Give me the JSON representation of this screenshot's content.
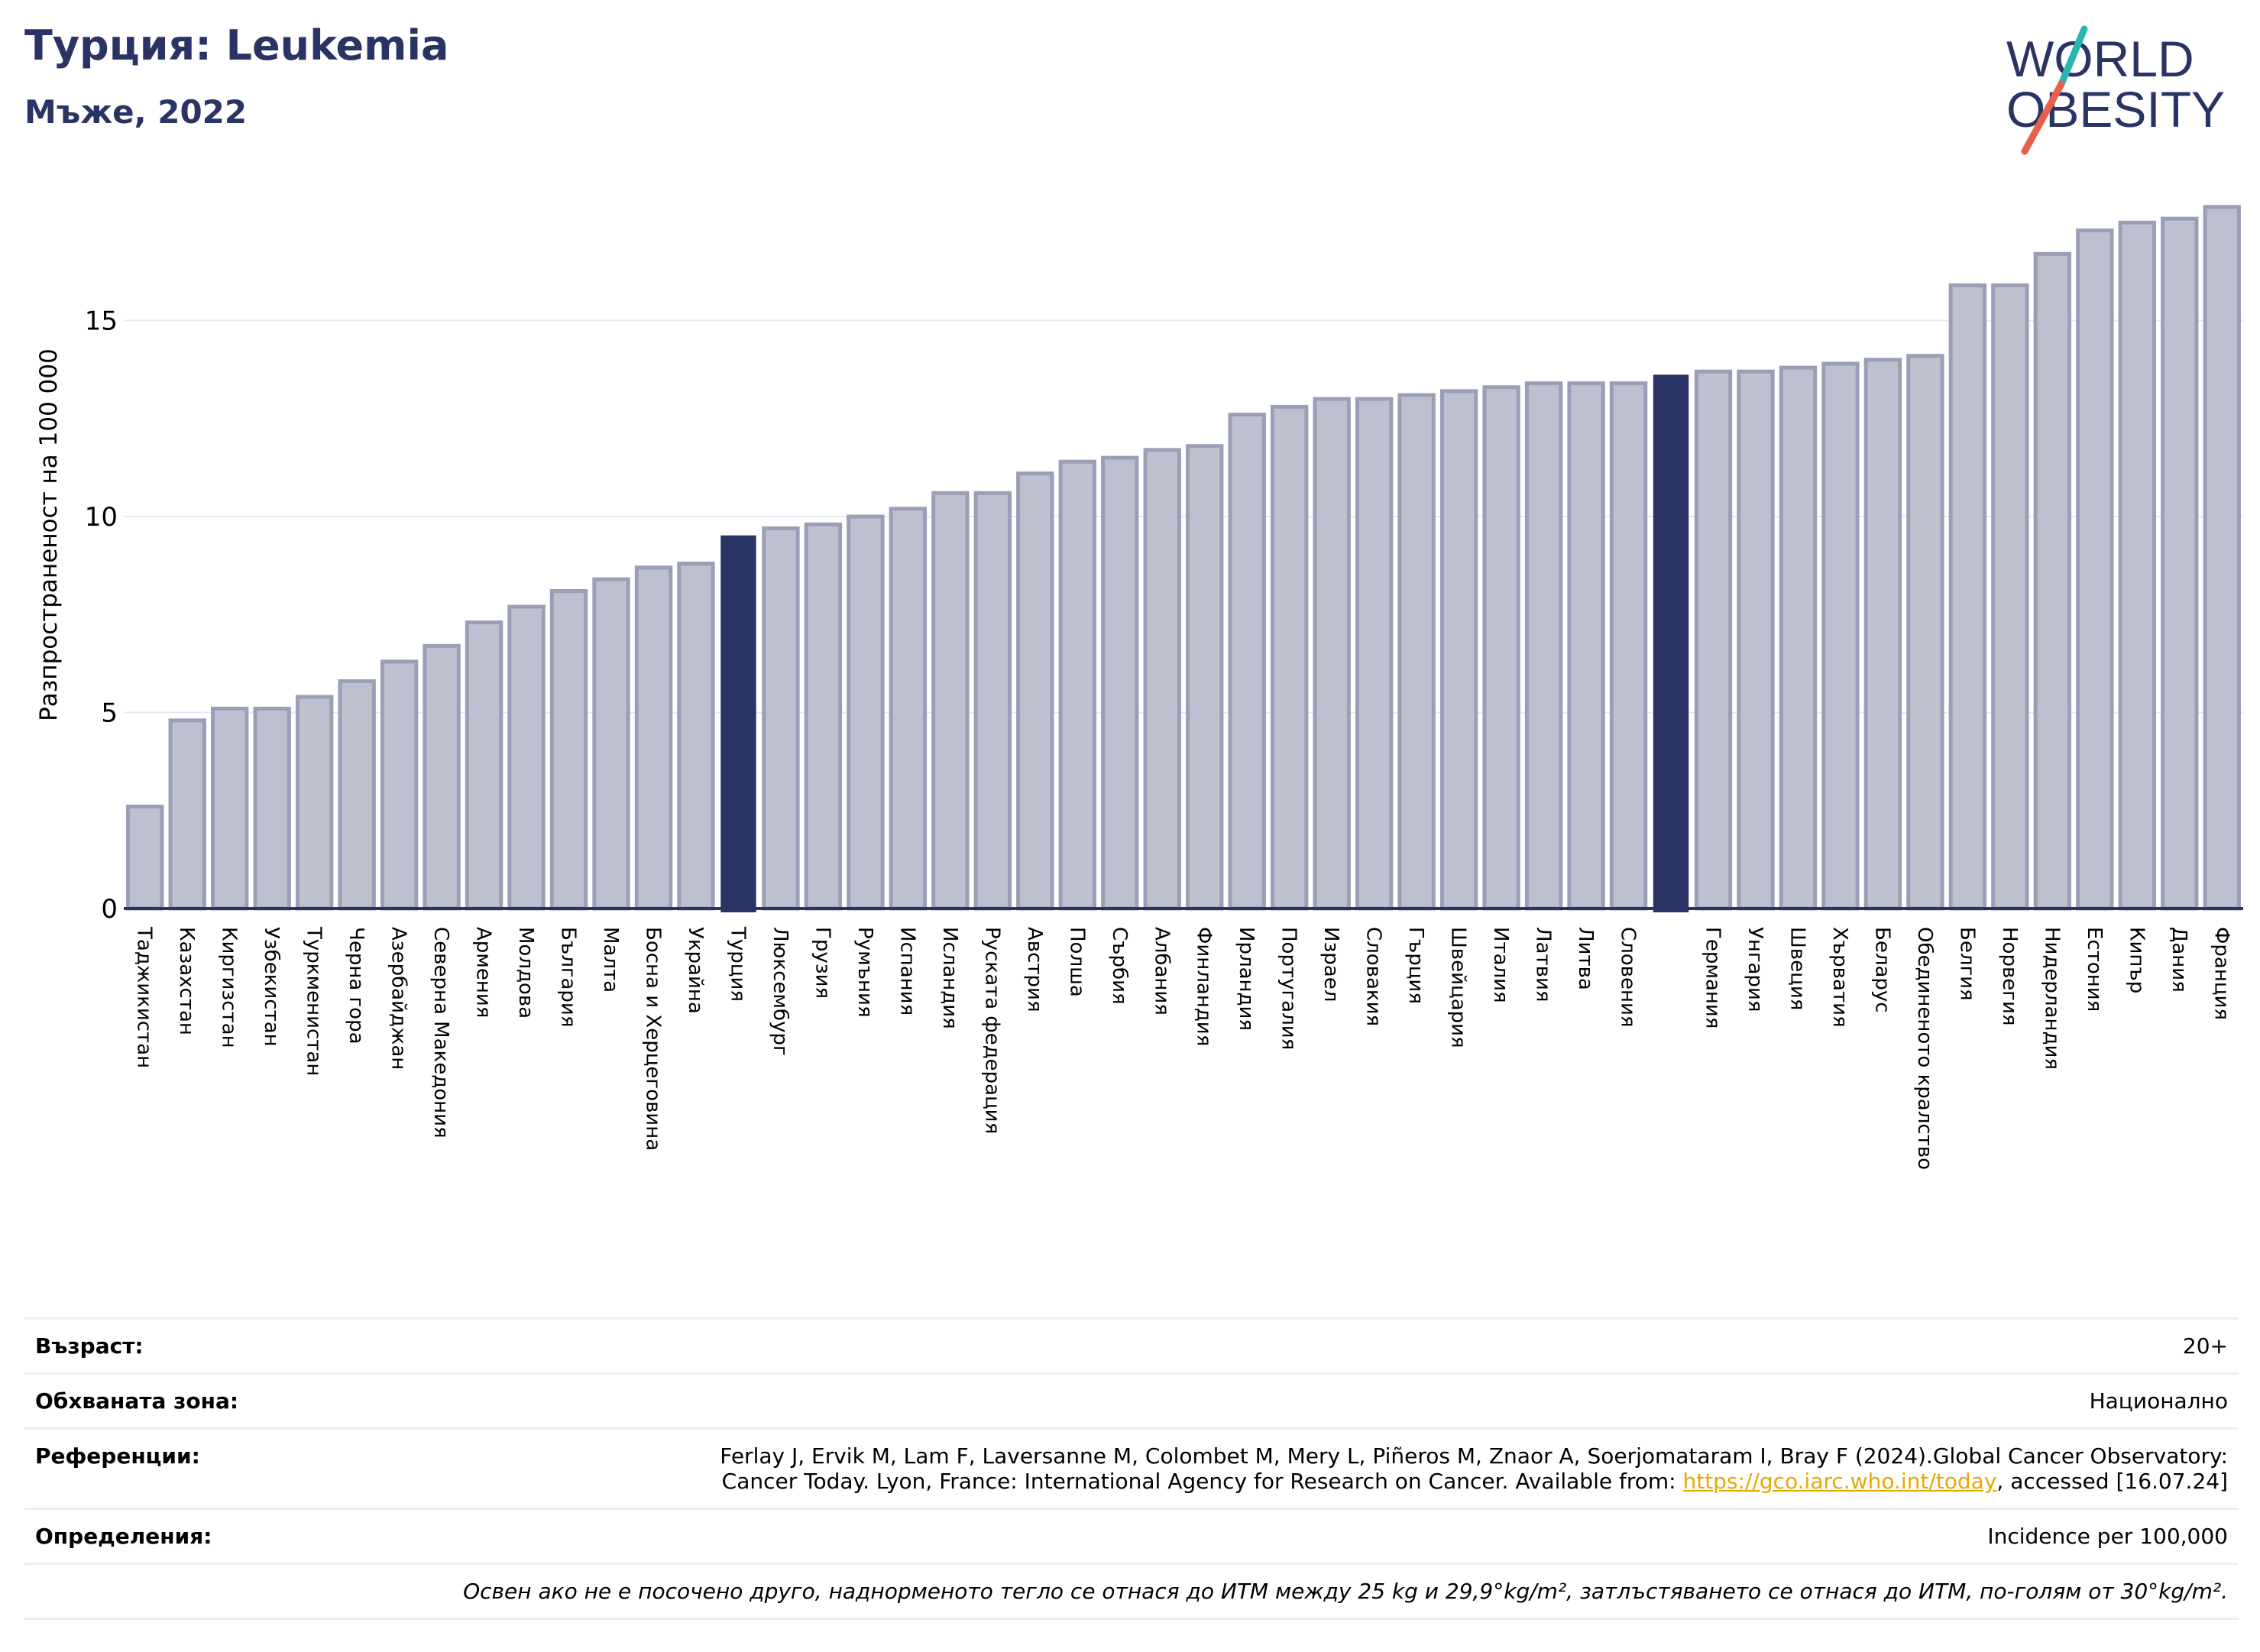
{
  "header": {
    "title": "Турция: Leukemia",
    "subtitle": "Мъже, 2022"
  },
  "logo": {
    "line1": "WORLD",
    "line2": "OBESITY"
  },
  "colors": {
    "bar": "#bdc0cf",
    "bar_border": "#9a9fb7",
    "highlight": "#2a3464",
    "grid": "#e6e8ee",
    "axis": "#2a3464",
    "logo_teal": "#2ab5b0",
    "logo_coral": "#e8604c",
    "link": "#e8a800"
  },
  "chart_data": {
    "type": "bar",
    "ylabel": "Разпространеност  на 100 000",
    "ylim": [
      0,
      18.5
    ],
    "yticks": [
      0,
      5,
      10,
      15
    ],
    "grid": true,
    "categories": [
      "Таджикистан",
      "Казахстан",
      "Киргизстан",
      "Узбекистан",
      "Туркменистан",
      "Черна гора",
      "Азербайджан",
      "Северна Македония",
      "Армения",
      "Молдова",
      "България",
      "Малта",
      "Босна и Херцеговина",
      "Украйна",
      "Турция",
      "Люксембург",
      "Грузия",
      "Румъния",
      "Испания",
      "Исландия",
      "Руската федерация",
      "Австрия",
      "Полша",
      "Сърбия",
      "Албания",
      "Финландия",
      "Ирландия",
      "Португалия",
      "Израел",
      "Словакия",
      "Гърция",
      "Швейцария",
      "Италия",
      "Латвия",
      "Литва",
      "Словения",
      "",
      "Германия",
      "Унгария",
      "Швеция",
      "Хърватия",
      "Беларус",
      "Обединеното кралство",
      "Белгия",
      "Норвегия",
      "Нидерландия",
      "Естония",
      "Кипър",
      "Дания",
      "Франция"
    ],
    "values": [
      2.6,
      4.8,
      5.1,
      5.1,
      5.4,
      5.8,
      6.3,
      6.7,
      7.3,
      7.7,
      8.1,
      8.4,
      8.7,
      8.8,
      9.5,
      9.7,
      9.8,
      10.0,
      10.2,
      10.6,
      10.6,
      11.1,
      11.4,
      11.5,
      11.7,
      11.8,
      12.6,
      12.8,
      13.0,
      13.0,
      13.1,
      13.2,
      13.3,
      13.4,
      13.4,
      13.4,
      13.6,
      13.7,
      13.7,
      13.8,
      13.9,
      14.0,
      14.1,
      15.9,
      15.9,
      16.7,
      17.3,
      17.5,
      17.6,
      17.9
    ],
    "highlight": [
      14,
      36
    ]
  },
  "info": {
    "age_label": "Възраст:",
    "age_value": "20+",
    "coverage_label": "Обхваната зона:",
    "coverage_value": "Национално",
    "references_label": "Референции:",
    "references_line1": "Ferlay J, Ervik M, Lam F, Laversanne M, Colombet M, Mery L, Piñeros M, Znaor A, Soerjomataram I, Bray F (2024).Global Cancer Observatory:",
    "references_line2_a": "Cancer Today. Lyon, France: International Agency for Research on Cancer. Available from: ",
    "references_link": "https://gco.iarc.who.int/today",
    "references_line2_b": ", accessed [16.07.24]",
    "definitions_label": "Определения:",
    "definitions_value": "Incidence per 100,000",
    "note": "Освен ако не е посочено друго, наднорменото тегло се отнася до ИТМ между 25 kg и 29,9°kg/m², затлъстяването се отнася до ИТМ, по-голям от 30°kg/m²."
  }
}
